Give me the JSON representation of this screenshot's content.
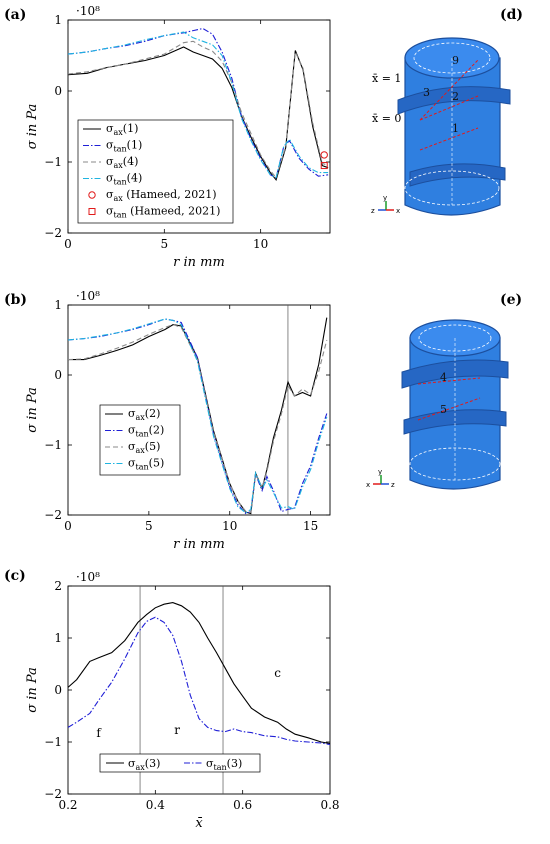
{
  "panel_labels": {
    "a": "(a)",
    "b": "(b)",
    "c": "(c)",
    "d": "(d)",
    "e": "(e)"
  },
  "colors": {
    "black": "#000000",
    "blue": "#1f1fd6",
    "gray": "#8a8a8a",
    "cyan": "#1fb4e0",
    "red": "#e11b1b",
    "part": "#2f7fe0",
    "part_dark": "#1c4f9e"
  },
  "chart_data": [
    {
      "id": "a",
      "type": "line",
      "xlabel": "r in mm",
      "ylabel": "σ in Pa",
      "scale_label": "·10⁸",
      "xlim": [
        0,
        13.6
      ],
      "ylim": [
        -2,
        1
      ],
      "xticks": [
        0,
        5,
        10
      ],
      "yticks": [
        -2,
        -1,
        0,
        1
      ],
      "legend_pos": "bottom-left",
      "series": [
        {
          "name": "σax(1)",
          "style": "solid",
          "color": "#000000",
          "x": [
            0,
            1,
            2,
            3,
            4,
            5,
            6,
            6.5,
            7,
            7.5,
            8,
            8.5,
            9,
            9.5,
            10,
            10.5,
            10.8,
            11.3,
            11.8,
            12.2,
            12.7,
            13.2,
            13.5
          ],
          "y": [
            0.23,
            0.25,
            0.33,
            0.38,
            0.43,
            0.5,
            0.62,
            0.55,
            0.5,
            0.45,
            0.32,
            0.05,
            -0.35,
            -0.65,
            -0.92,
            -1.15,
            -1.25,
            -0.8,
            0.57,
            0.3,
            -0.5,
            -1.05,
            -1.08
          ]
        },
        {
          "name": "σtan(1)",
          "style": "dashdot",
          "color": "#1f1fd6",
          "x": [
            0,
            1,
            2,
            3,
            4,
            5,
            6,
            6.5,
            7,
            7.5,
            8,
            8.5,
            9,
            9.5,
            10,
            10.5,
            10.8,
            11.2,
            11.5,
            12,
            12.5,
            13,
            13.5
          ],
          "y": [
            0.52,
            0.55,
            0.6,
            0.64,
            0.7,
            0.78,
            0.82,
            0.85,
            0.88,
            0.8,
            0.55,
            0.18,
            -0.35,
            -0.68,
            -0.95,
            -1.18,
            -1.22,
            -0.78,
            -0.7,
            -0.95,
            -1.1,
            -1.2,
            -1.18
          ]
        },
        {
          "name": "σax(4)",
          "style": "dashed",
          "color": "#8a8a8a",
          "x": [
            0,
            1,
            2,
            3,
            4,
            5,
            6,
            6.5,
            7,
            7.5,
            8,
            8.5,
            9,
            9.5,
            10,
            10.5,
            10.8,
            11.3,
            11.8,
            12.2,
            12.7,
            13.2,
            13.5
          ],
          "y": [
            0.24,
            0.27,
            0.33,
            0.38,
            0.45,
            0.52,
            0.68,
            0.7,
            0.62,
            0.56,
            0.42,
            0.12,
            -0.3,
            -0.6,
            -0.9,
            -1.12,
            -1.22,
            -0.78,
            0.55,
            0.32,
            -0.45,
            -1.02,
            -1.05
          ]
        },
        {
          "name": "σtan(4)",
          "style": "dashdot",
          "color": "#1fb4e0",
          "x": [
            0,
            1,
            2,
            3,
            4,
            5,
            6,
            6.5,
            7,
            7.5,
            8,
            8.5,
            9,
            9.5,
            10,
            10.5,
            10.8,
            11.2,
            11.5,
            12,
            12.5,
            13,
            13.5
          ],
          "y": [
            0.52,
            0.55,
            0.6,
            0.65,
            0.72,
            0.78,
            0.83,
            0.75,
            0.7,
            0.65,
            0.5,
            0.12,
            -0.38,
            -0.7,
            -0.97,
            -1.18,
            -1.22,
            -0.78,
            -0.68,
            -0.92,
            -1.08,
            -1.15,
            -1.15
          ]
        }
      ],
      "markers": [
        {
          "name": "σax (Hameed, 2021)",
          "shape": "circle",
          "color": "#e11b1b",
          "x": 13.3,
          "y": -0.9
        },
        {
          "name": "σtan (Hameed, 2021)",
          "shape": "square",
          "color": "#e11b1b",
          "x": 13.3,
          "y": -1.05
        }
      ]
    },
    {
      "id": "b",
      "type": "line",
      "xlabel": "r in mm",
      "ylabel": "σ in Pa",
      "scale_label": "·10⁸",
      "xlim": [
        0,
        16.2
      ],
      "ylim": [
        -2,
        1
      ],
      "xticks": [
        0,
        5,
        10,
        15
      ],
      "yticks": [
        -2,
        -1,
        0,
        1
      ],
      "vlines": [
        13.6
      ],
      "legend_pos": "center",
      "series": [
        {
          "name": "σax(2)",
          "style": "solid",
          "color": "#000000",
          "x": [
            0,
            1,
            2,
            3,
            4,
            5,
            6,
            6.5,
            7,
            8,
            9,
            10,
            10.5,
            11,
            11.3,
            11.6,
            12,
            12.3,
            12.7,
            13.2,
            13.6,
            14,
            14.5,
            15,
            15.5,
            16
          ],
          "y": [
            0.22,
            0.22,
            0.28,
            0.35,
            0.43,
            0.55,
            0.65,
            0.72,
            0.7,
            0.25,
            -0.8,
            -1.55,
            -1.8,
            -1.96,
            -1.98,
            -1.4,
            -1.62,
            -1.35,
            -0.9,
            -0.5,
            -0.1,
            -0.3,
            -0.25,
            -0.3,
            0.15,
            0.82
          ]
        },
        {
          "name": "σtan(2)",
          "style": "dashdot",
          "color": "#1f1fd6",
          "x": [
            0,
            1,
            2,
            3,
            4,
            5,
            6,
            6.5,
            7,
            8,
            9,
            10,
            10.5,
            11,
            11.3,
            11.6,
            12,
            12.3,
            12.7,
            13.2,
            13.6,
            14,
            14.5,
            15,
            15.5,
            16
          ],
          "y": [
            0.5,
            0.52,
            0.55,
            0.6,
            0.65,
            0.72,
            0.8,
            0.78,
            0.75,
            0.25,
            -0.85,
            -1.6,
            -1.85,
            -1.98,
            -1.95,
            -1.42,
            -1.65,
            -1.45,
            -1.65,
            -1.95,
            -1.92,
            -1.9,
            -1.55,
            -1.3,
            -0.9,
            -0.55
          ]
        },
        {
          "name": "σax(5)",
          "style": "dashed",
          "color": "#8a8a8a",
          "x": [
            0,
            1,
            2,
            3,
            4,
            5,
            6,
            6.5,
            7,
            8,
            9,
            10,
            10.5,
            11,
            11.3,
            11.6,
            12,
            12.3,
            12.7,
            13.2,
            13.6,
            14,
            14.5,
            15,
            15.5,
            16
          ],
          "y": [
            0.22,
            0.23,
            0.3,
            0.38,
            0.47,
            0.58,
            0.68,
            0.72,
            0.68,
            0.22,
            -0.82,
            -1.55,
            -1.8,
            -1.95,
            -1.96,
            -1.42,
            -1.6,
            -1.38,
            -0.95,
            -0.55,
            -0.15,
            -0.3,
            -0.2,
            -0.28,
            0.05,
            0.5
          ]
        },
        {
          "name": "σtan(5)",
          "style": "dashdot",
          "color": "#1fb4e0",
          "x": [
            0,
            1,
            2,
            3,
            4,
            5,
            6,
            6.5,
            7,
            8,
            9,
            10,
            10.5,
            11,
            11.3,
            11.6,
            12,
            12.3,
            12.7,
            13.2,
            13.6,
            14,
            14.5,
            15,
            15.5,
            16
          ],
          "y": [
            0.5,
            0.52,
            0.56,
            0.6,
            0.66,
            0.73,
            0.8,
            0.78,
            0.72,
            0.2,
            -0.88,
            -1.62,
            -1.88,
            -1.97,
            -1.92,
            -1.4,
            -1.62,
            -1.5,
            -1.68,
            -1.9,
            -1.88,
            -1.92,
            -1.6,
            -1.35,
            -0.95,
            -0.6
          ]
        }
      ]
    },
    {
      "id": "c",
      "type": "line",
      "xlabel": "x̄",
      "ylabel": "σ in Pa",
      "scale_label": "·10⁸",
      "xlim": [
        0.2,
        0.8
      ],
      "ylim": [
        -2,
        2
      ],
      "xticks": [
        0.2,
        0.4,
        0.6,
        0.8
      ],
      "yticks": [
        -2,
        -1,
        0,
        1,
        2
      ],
      "vlines": [
        0.365,
        0.555
      ],
      "legend_pos": "bottom",
      "region_labels": [
        {
          "text": "f",
          "x": 0.27,
          "y": -0.9
        },
        {
          "text": "r",
          "x": 0.45,
          "y": -0.85
        },
        {
          "text": "c",
          "x": 0.68,
          "y": 0.25
        }
      ],
      "series": [
        {
          "name": "σax(3)",
          "style": "solid",
          "color": "#000000",
          "x": [
            0.2,
            0.22,
            0.25,
            0.27,
            0.3,
            0.33,
            0.36,
            0.38,
            0.4,
            0.42,
            0.44,
            0.46,
            0.48,
            0.5,
            0.52,
            0.54,
            0.56,
            0.58,
            0.6,
            0.62,
            0.65,
            0.68,
            0.7,
            0.72,
            0.75,
            0.78,
            0.8
          ],
          "y": [
            0.05,
            0.2,
            0.55,
            0.62,
            0.72,
            0.95,
            1.3,
            1.45,
            1.58,
            1.65,
            1.68,
            1.62,
            1.5,
            1.3,
            1.0,
            0.72,
            0.42,
            0.12,
            -0.12,
            -0.35,
            -0.52,
            -0.62,
            -0.75,
            -0.85,
            -0.92,
            -1.0,
            -1.03
          ]
        },
        {
          "name": "σtan(3)",
          "style": "dashdot",
          "color": "#1f1fd6",
          "x": [
            0.2,
            0.22,
            0.25,
            0.27,
            0.3,
            0.33,
            0.36,
            0.38,
            0.4,
            0.42,
            0.44,
            0.46,
            0.48,
            0.5,
            0.52,
            0.54,
            0.56,
            0.58,
            0.6,
            0.62,
            0.65,
            0.68,
            0.7,
            0.72,
            0.75,
            0.78,
            0.8
          ],
          "y": [
            -0.72,
            -0.62,
            -0.45,
            -0.2,
            0.15,
            0.6,
            1.1,
            1.32,
            1.4,
            1.3,
            1.05,
            0.55,
            -0.1,
            -0.55,
            -0.72,
            -0.78,
            -0.8,
            -0.75,
            -0.8,
            -0.82,
            -0.88,
            -0.9,
            -0.95,
            -0.98,
            -1.0,
            -1.02,
            -1.05
          ]
        }
      ]
    }
  ],
  "models": {
    "d": {
      "labels": [
        "x̄ = 1",
        "x̄ = 0",
        "9",
        "3",
        "2",
        "1"
      ],
      "axes": [
        "z",
        "y",
        "x"
      ]
    },
    "e": {
      "labels": [
        "4",
        "5"
      ],
      "axes": [
        "x",
        "y",
        "z"
      ]
    }
  }
}
